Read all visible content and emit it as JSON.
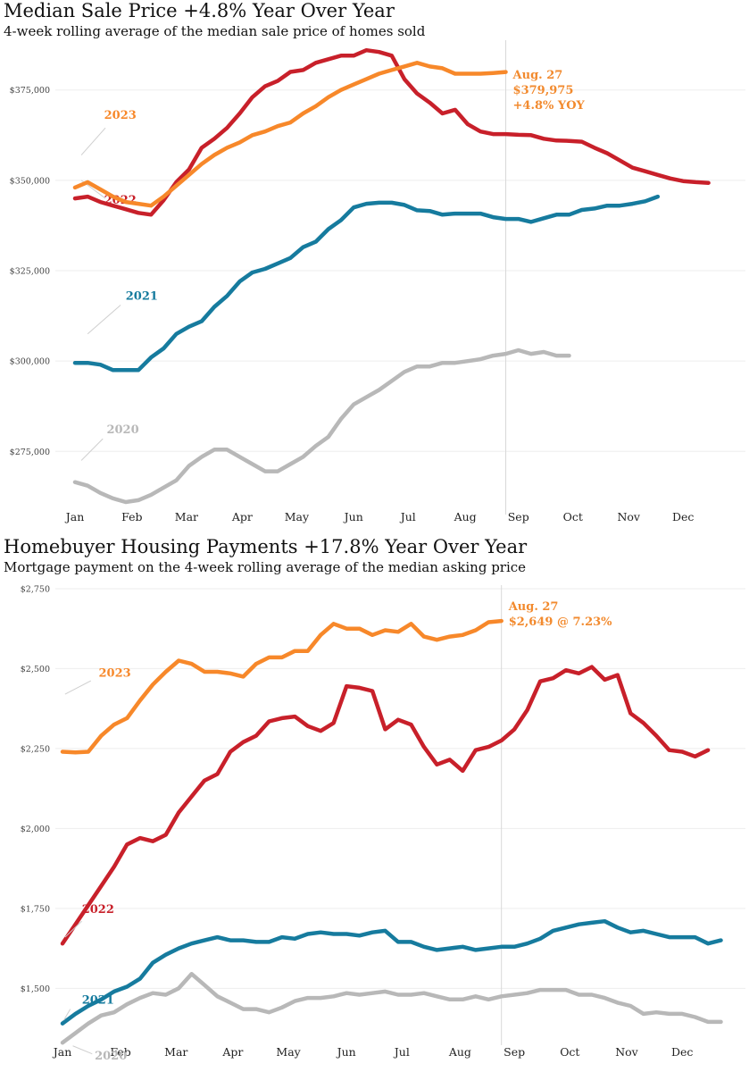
{
  "colors": {
    "y2023": "#f7882a",
    "y2022": "#c8202a",
    "y2021": "#167b9e",
    "y2020": "#b8b8b8",
    "grid": "#eeeeee",
    "marker": "#d8d8d8"
  },
  "chart_data": [
    {
      "type": "line",
      "title": "Median Sale Price +4.8% Year Over Year",
      "subtitle": "4-week rolling average of the median sale price of homes sold",
      "months": [
        "Jan",
        "Feb",
        "Mar",
        "Apr",
        "May",
        "Jun",
        "Jul",
        "Aug",
        "Sep",
        "Oct",
        "Nov",
        "Dec"
      ],
      "y_ticks": [
        275000,
        300000,
        325000,
        350000,
        375000
      ],
      "y_tick_labels": [
        "$275,000",
        "$300,000",
        "$325,000",
        "$350,000",
        "$375,000"
      ],
      "ylim": [
        260000,
        390000
      ],
      "xlim": [
        1,
        53
      ],
      "marker_week": 35,
      "annotation": {
        "week": 35,
        "value": 379975,
        "lines": [
          "Aug. 27",
          "$379,975",
          "+4.8% YOY"
        ]
      },
      "series": [
        {
          "name": "2020",
          "label_week": 3.5,
          "label_value": 280000,
          "leader": [
            [
              3.2,
              278500
            ],
            [
              1.5,
              272500
            ]
          ],
          "values": [
            266500,
            265500,
            263500,
            262000,
            261000,
            261500,
            263000,
            265000,
            267000,
            271000,
            273500,
            275500,
            275500,
            273500,
            271500,
            269500,
            269500,
            271500,
            273500,
            276500,
            279000,
            284000,
            288000,
            290000,
            292000,
            294500,
            297000,
            298500,
            298500,
            299500,
            299500,
            300000,
            300500,
            301500,
            302000,
            303000,
            302000,
            302500,
            301500,
            301500
          ]
        },
        {
          "name": "2021",
          "label_week": 5,
          "label_value": 317000,
          "leader": [
            [
              4.6,
              315500
            ],
            [
              2,
              307500
            ]
          ],
          "values": [
            299500,
            299500,
            299000,
            297500,
            297500,
            297500,
            301000,
            303500,
            307500,
            309500,
            311000,
            315000,
            318000,
            322000,
            324500,
            325500,
            327000,
            328500,
            331500,
            333000,
            336500,
            339000,
            342500,
            343500,
            343800,
            343800,
            343200,
            341700,
            341500,
            340500,
            340800,
            340800,
            340800,
            339800,
            339300,
            339300,
            338500,
            339500,
            340500,
            340500,
            341800,
            342200,
            343000,
            343000,
            343500,
            344200,
            345500
          ]
        },
        {
          "name": "2022",
          "label_week": 3.3,
          "label_value": 343500,
          "leader": [
            [
              3.4,
              345000
            ],
            [
              1.5,
              350000
            ]
          ],
          "values": [
            345000,
            345500,
            344000,
            343000,
            342000,
            341000,
            340500,
            344500,
            349500,
            353000,
            359000,
            361500,
            364500,
            368500,
            373000,
            376000,
            377500,
            380000,
            380500,
            382500,
            383500,
            384500,
            384500,
            386000,
            385500,
            384500,
            378000,
            374000,
            371500,
            368500,
            369500,
            365500,
            363500,
            362800,
            362800,
            362600,
            362500,
            361500,
            361000,
            360900,
            360700,
            359000,
            357500,
            355500,
            353500,
            352500,
            351500,
            350500,
            349800,
            349500,
            349300
          ]
        },
        {
          "name": "2023",
          "label_week": 3.3,
          "label_value": 367000,
          "leader": [
            [
              3.4,
              364500
            ],
            [
              1.5,
              357000
            ]
          ],
          "values": [
            348000,
            349500,
            347500,
            345500,
            344000,
            343500,
            343000,
            345500,
            348500,
            351500,
            354500,
            357000,
            359000,
            360500,
            362500,
            363500,
            365000,
            366000,
            368500,
            370500,
            373000,
            375000,
            376500,
            378000,
            379500,
            380500,
            381500,
            382500,
            381500,
            381000,
            379500,
            379500,
            379500,
            379700,
            379975
          ]
        }
      ]
    },
    {
      "type": "line",
      "title": "Homebuyer Housing Payments +17.8% Year Over Year",
      "subtitle": "Mortgage payment on the 4-week rolling average of the median asking price",
      "months": [
        "Jan",
        "Feb",
        "Mar",
        "Apr",
        "May",
        "Jun",
        "Jul",
        "Aug",
        "Sep",
        "Oct",
        "Nov",
        "Dec"
      ],
      "y_ticks": [
        1500,
        1750,
        2000,
        2250,
        2500,
        2750
      ],
      "y_tick_labels": [
        "$1,500",
        "$1,750",
        "$2,000",
        "$2,250",
        "$2,500",
        "$2,750"
      ],
      "ylim": [
        1350,
        2775
      ],
      "xlim": [
        1,
        53
      ],
      "marker_week": 35,
      "annotation": {
        "week": 35,
        "value": 2649,
        "lines": [
          "Aug. 27",
          "$2,649 @ 7.23%"
        ]
      },
      "series": [
        {
          "name": "2020",
          "label_week": 3.5,
          "label_value": 1278,
          "leader": [
            [
              3.3,
              1295
            ],
            [
              1.8,
              1320
            ]
          ],
          "values": [
            1330,
            1360,
            1390,
            1415,
            1425,
            1450,
            1470,
            1485,
            1480,
            1500,
            1545,
            1510,
            1475,
            1455,
            1435,
            1435,
            1425,
            1440,
            1460,
            1470,
            1470,
            1475,
            1485,
            1480,
            1485,
            1490,
            1480,
            1480,
            1485,
            1475,
            1465,
            1465,
            1475,
            1465,
            1475,
            1480,
            1485,
            1495,
            1495,
            1495,
            1480,
            1480,
            1470,
            1455,
            1445,
            1420,
            1425,
            1420,
            1420,
            1410,
            1395,
            1395
          ]
        },
        {
          "name": "2021",
          "label_week": 2.5,
          "label_value": 1452,
          "leader": [
            [
              1.6,
              1435
            ],
            [
              1.1,
              1400
            ]
          ],
          "values": [
            1390,
            1420,
            1445,
            1465,
            1490,
            1505,
            1530,
            1580,
            1605,
            1625,
            1640,
            1650,
            1660,
            1650,
            1650,
            1645,
            1645,
            1660,
            1655,
            1670,
            1675,
            1670,
            1670,
            1665,
            1675,
            1680,
            1645,
            1645,
            1630,
            1620,
            1625,
            1630,
            1620,
            1625,
            1630,
            1630,
            1640,
            1655,
            1680,
            1690,
            1700,
            1705,
            1710,
            1690,
            1675,
            1680,
            1670,
            1660,
            1660,
            1660,
            1640,
            1650
          ]
        },
        {
          "name": "2022",
          "label_week": 2.5,
          "label_value": 1735,
          "leader": [
            [
              2.5,
              1710
            ],
            [
              1.2,
              1660
            ]
          ],
          "values": [
            1640,
            1700,
            1760,
            1820,
            1880,
            1950,
            1970,
            1960,
            1980,
            2050,
            2100,
            2150,
            2170,
            2240,
            2270,
            2290,
            2335,
            2345,
            2350,
            2320,
            2305,
            2330,
            2445,
            2440,
            2430,
            2310,
            2340,
            2325,
            2255,
            2200,
            2215,
            2180,
            2245,
            2255,
            2275,
            2310,
            2370,
            2460,
            2470,
            2495,
            2485,
            2505,
            2465,
            2480,
            2360,
            2330,
            2290,
            2245,
            2240,
            2225,
            2245
          ]
        },
        {
          "name": "2023",
          "label_week": 3.8,
          "label_value": 2475,
          "leader": [
            [
              3.2,
              2462
            ],
            [
              1.2,
              2420
            ]
          ],
          "values": [
            2240,
            2238,
            2240,
            2290,
            2325,
            2345,
            2400,
            2450,
            2490,
            2525,
            2515,
            2490,
            2490,
            2485,
            2475,
            2515,
            2535,
            2535,
            2555,
            2555,
            2605,
            2640,
            2625,
            2625,
            2605,
            2620,
            2615,
            2640,
            2600,
            2590,
            2600,
            2605,
            2620,
            2645,
            2649
          ]
        }
      ]
    }
  ]
}
